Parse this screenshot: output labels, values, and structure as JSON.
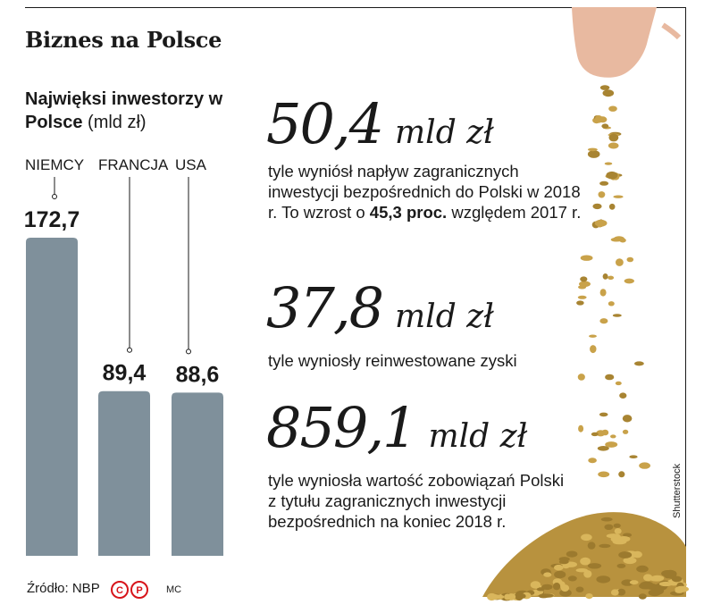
{
  "header": {
    "title": "Biznes na Polsce"
  },
  "chart_data": {
    "type": "bar",
    "title_bold": "Najwięksi inwestorzy w Polsce",
    "title_unit": "(mld zł)",
    "categories": [
      "NIEMCY",
      "FRANCJA",
      "USA"
    ],
    "values": [
      172.7,
      89.4,
      88.6
    ],
    "value_labels": [
      "172,7",
      "89,4",
      "88,6"
    ],
    "ylim": [
      0,
      172.7
    ],
    "bar_color": "#7f909b"
  },
  "stats": [
    {
      "number": "50,4",
      "unit": "mld zł",
      "text_before": "tyle wyniósł napływ zagranicznych inwestycji bezpośrednich do Polski w 2018 r. To wzrost o ",
      "text_bold": "45,3 proc.",
      "text_after": " względem 2017 r."
    },
    {
      "number": "37,8",
      "unit": "mld zł",
      "text": "tyle wyniosły reinwestowane zyski"
    },
    {
      "number": "859,1",
      "unit": "mld zł",
      "text": "tyle wyniosła wartość zobowiązań Polski z tytułu zagranicznych inwestycji bezpośrednich na koniec 2018 r."
    }
  ],
  "footer": {
    "source": "Źródło: NBP",
    "logo_letters": "CP",
    "author": "MC",
    "photo_credit": "Shutterstock"
  },
  "colors": {
    "accent_red": "#d7141a",
    "coin_gold": "#c9a24a"
  },
  "icons": [
    "hand-image",
    "coins-image",
    "cp-logo-icon"
  ]
}
